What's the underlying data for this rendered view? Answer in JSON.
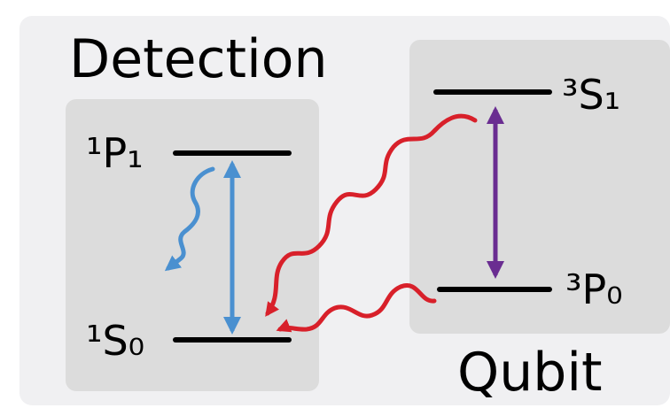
{
  "titles": {
    "detection": "Detection",
    "qubit": "Qubit"
  },
  "levels": {
    "p1": "¹P₁",
    "s0": "¹S₀",
    "s1_3": "³S₁",
    "p0_3": "³P₀"
  },
  "colors": {
    "detection_transition": "#4a90d0",
    "qubit_transition": "#6a2d91",
    "decay": "#d8202a",
    "level_line": "#000000"
  }
}
